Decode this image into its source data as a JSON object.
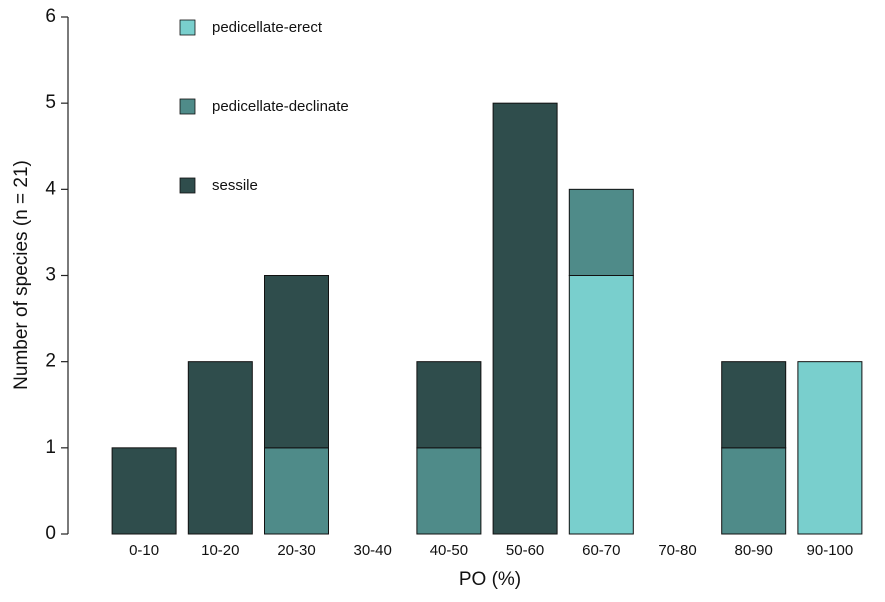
{
  "chart_data": {
    "type": "bar",
    "stacked": true,
    "x_label": "PO (%)",
    "y_label": "Number of species (n = 21)",
    "categories": [
      "0-10",
      "10-20",
      "20-30",
      "30-40",
      "40-50",
      "50-60",
      "60-70",
      "70-80",
      "80-90",
      "90-100"
    ],
    "series": [
      {
        "name": "pedicellate-erect",
        "color": "#79cfcd",
        "values": [
          0,
          0,
          0,
          0,
          0,
          0,
          3,
          0,
          0,
          2
        ]
      },
      {
        "name": "pedicellate-declinate",
        "color": "#4f8b89",
        "values": [
          0,
          0,
          1,
          0,
          1,
          0,
          1,
          0,
          1,
          0
        ]
      },
      {
        "name": "sessile",
        "color": "#2f4d4c",
        "values": [
          1,
          2,
          2,
          0,
          1,
          5,
          0,
          0,
          1,
          0
        ]
      }
    ],
    "ylim": [
      0,
      6
    ],
    "yticks": [
      0,
      1,
      2,
      3,
      4,
      5,
      6
    ],
    "legend": "top-left"
  }
}
